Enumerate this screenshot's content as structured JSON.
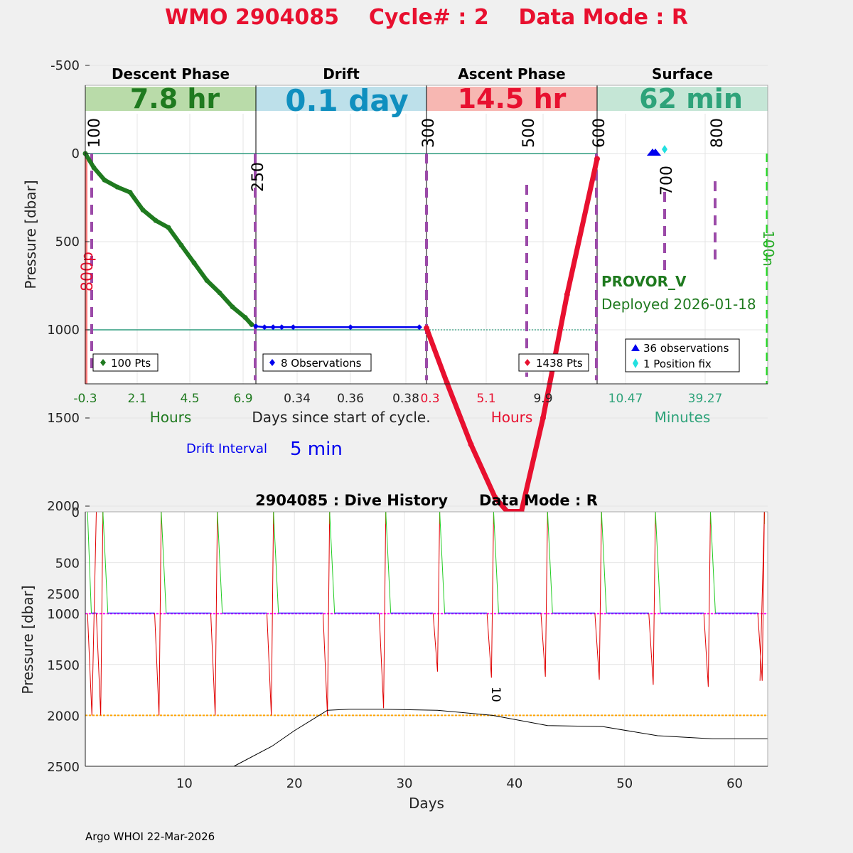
{
  "header": {
    "title": "WMO 2904085    Cycle# : 2    Data Mode : R",
    "title_color": "#e8102f"
  },
  "phases": [
    {
      "name": "Descent Phase",
      "duration": "7.8 hr",
      "band_color": "#b9dba9",
      "duration_color": "#1f7a1f"
    },
    {
      "name": "Drift",
      "duration": "0.1 day",
      "band_color": "#bde0ea",
      "duration_color": "#0f8fbf"
    },
    {
      "name": "Ascent Phase",
      "duration": "14.5 hr",
      "band_color": "#f7b7b2",
      "duration_color": "#e8102f"
    },
    {
      "name": "Surface",
      "duration": "62 min",
      "band_color": "#c5e6d6",
      "duration_color": "#2ea37a"
    }
  ],
  "top_chart": {
    "ylabel": "Pressure [dbar]",
    "yticks": [
      "-500",
      "0",
      "500",
      "1000",
      "1500",
      "2000",
      "2500"
    ],
    "descent_xticks": [
      "-0.3",
      "2.1",
      "4.5",
      "6.9"
    ],
    "drift_xticks": [
      "0.34",
      "0.36",
      "0.38"
    ],
    "ascent_xticks": [
      "0.3",
      "5.1",
      "9.9"
    ],
    "surface_xticks": [
      "10.47",
      "39.27"
    ],
    "descent_xlabel": "Hours",
    "drift_xlabel": "Days since start of cycle.",
    "ascent_xlabel": "Hours",
    "surface_xlabel": "Minutes",
    "vertical_labels": [
      "100",
      "250",
      "300",
      "500",
      "600",
      "700",
      "800"
    ],
    "left_red_label": "800p",
    "right_green_label": "100n",
    "float_type": "PROVOR_V",
    "deployed": "Deployed 2026-01-18",
    "legend_descent": "100 Pts",
    "legend_drift": "8 Observations",
    "legend_ascent": "1438 Pts",
    "legend_surface_1": "36 observations",
    "legend_surface_2": "1 Position fix",
    "drift_interval_label": "Drift Interval",
    "drift_interval_value": "5 min"
  },
  "chart_data": [
    {
      "type": "line",
      "title": "WMO 2904085    Cycle# : 2    Data Mode : R",
      "ylabel": "Pressure [dbar]",
      "ylim": [
        2600,
        -750
      ],
      "series": [
        {
          "name": "Descent Phase",
          "unit": "Hours",
          "x": [
            -0.3,
            0.1,
            0.6,
            1.2,
            1.8,
            2.4,
            3.0,
            3.6,
            4.2,
            4.8,
            5.4,
            6.0,
            6.6,
            7.2,
            7.5
          ],
          "y": [
            0,
            80,
            150,
            190,
            220,
            320,
            380,
            420,
            520,
            620,
            720,
            790,
            870,
            930,
            970
          ]
        },
        {
          "name": "Drift",
          "unit": "Days since start of cycle.",
          "x": [
            0.326,
            0.329,
            0.332,
            0.335,
            0.339,
            0.359,
            0.383
          ],
          "y": [
            980,
            985,
            985,
            985,
            985,
            985,
            985
          ]
        },
        {
          "name": "Ascent Phase",
          "unit": "Hours",
          "x": [
            0.3,
            2.0,
            4.0,
            6.0,
            7.0,
            8.2,
            10.0,
            12.0,
            14.5
          ],
          "y": [
            990,
            1300,
            1650,
            1950,
            2030,
            2030,
            1500,
            800,
            30
          ]
        },
        {
          "name": "Surface",
          "unit": "Minutes",
          "x": [
            20,
            22
          ],
          "y": [
            0,
            0
          ]
        }
      ]
    },
    {
      "type": "line",
      "title": "2904085 : Dive History      Data Mode : R",
      "xlabel": "Days",
      "ylabel": "Pressure [dbar]",
      "xlim": [
        1,
        63
      ],
      "ylim": [
        2500,
        0
      ],
      "xticks": [
        10,
        20,
        30,
        40,
        50,
        60
      ],
      "yticks": [
        0,
        500,
        1000,
        1500,
        2000,
        2500
      ],
      "reference_lines": {
        "drift_pressure": 1000,
        "profile_pressure": 2000
      },
      "cycle_times": [
        1.2,
        2.6,
        7.9,
        13.0,
        18.1,
        23.2,
        28.3,
        33.2,
        38.1,
        43.0,
        47.9,
        52.8,
        57.8,
        62.7
      ],
      "profile_depths": [
        2000,
        2000,
        2000,
        2000,
        2000,
        2000,
        1930,
        1570,
        1630,
        1620,
        1650,
        1700,
        1720,
        1660
      ],
      "annotation": "10",
      "bathymetry": {
        "x": [
          14.5,
          18,
          20,
          23,
          25,
          28,
          33,
          38,
          43,
          48,
          53,
          58,
          63
        ],
        "y": [
          2500,
          2300,
          2150,
          1950,
          1940,
          1940,
          1950,
          2000,
          2100,
          2110,
          2200,
          2230,
          2230
        ]
      }
    }
  ],
  "bottom_chart": {
    "title": "2904085 : Dive History      Data Mode : R",
    "xlabel": "Days",
    "ylabel": "Pressure [dbar]",
    "xticks": [
      "10",
      "20",
      "30",
      "40",
      "50",
      "60"
    ],
    "yticks": [
      "0",
      "500",
      "1000",
      "1500",
      "2000",
      "2500"
    ],
    "annotation": "10"
  },
  "footer": "Argo WHOI 22-Mar-2026"
}
